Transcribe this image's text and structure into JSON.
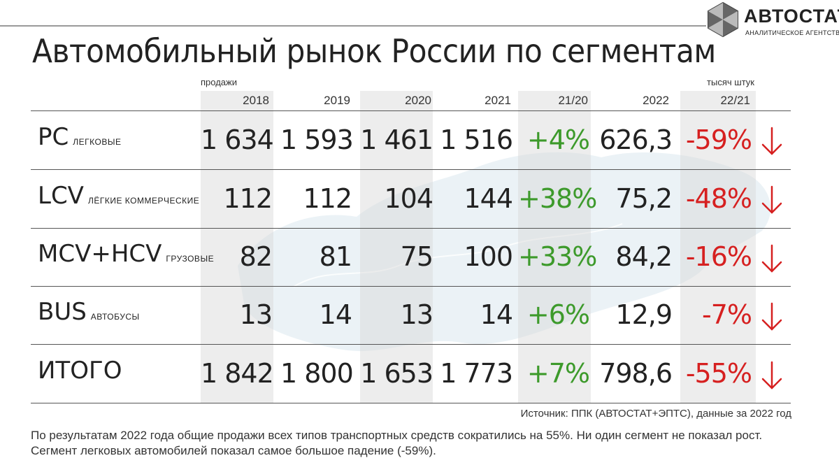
{
  "title": "Автомобильный рынок России по сегментам",
  "logo": {
    "name": "АВТОСТАТ",
    "subtitle": "АНАЛИТИЧЕСКОЕ АГЕНТСТВО"
  },
  "captions": {
    "left": "продажи",
    "right": "тысяч штук"
  },
  "columns": [
    "2018",
    "2019",
    "2020",
    "2021",
    "21/20",
    "2022",
    "22/21"
  ],
  "rows": [
    {
      "code": "PC",
      "name": "ЛЕГКОВЫЕ",
      "values": [
        "1 634",
        "1 593",
        "1 461",
        "1 516"
      ],
      "chg_21_20": "+4%",
      "v2022": "626,3",
      "chg_22_21": "-59%"
    },
    {
      "code": "LCV",
      "name": "ЛЁГКИЕ КОММЕРЧЕСКИЕ",
      "values": [
        "112",
        "112",
        "104",
        "144"
      ],
      "chg_21_20": "+38%",
      "v2022": "75,2",
      "chg_22_21": "-48%"
    },
    {
      "code": "MCV+HCV",
      "name": "ГРУЗОВЫЕ",
      "values": [
        "82",
        "81",
        "75",
        "100"
      ],
      "chg_21_20": "+33%",
      "v2022": "84,2",
      "chg_22_21": "-16%"
    },
    {
      "code": "BUS",
      "name": "АВТОБУСЫ",
      "values": [
        "13",
        "14",
        "13",
        "14"
      ],
      "chg_21_20": "+6%",
      "v2022": "12,9",
      "chg_22_21": "-7%"
    },
    {
      "code": "ИТОГО",
      "name": "",
      "values": [
        "1 842",
        "1 800",
        "1 653",
        "1 773"
      ],
      "chg_21_20": "+7%",
      "v2022": "798,6",
      "chg_22_21": "-55%"
    }
  ],
  "source": "Источник: ППК (АВТОСТАТ+ЭПТС), данные за 2022 год",
  "summary": "По результатам 2022 года общие продажи всех типов транспортных средств сократились на 55%. Ни один сегмент не показал рост. Сегмент легковых автомобилей показал самое большое падение (-59%).",
  "colors": {
    "positive": "#3d9a2b",
    "negative": "#d62020",
    "shade": "#d7d7d7"
  },
  "icons": {
    "trend": "arrow-down-icon",
    "logo": "hexagon-logo-icon"
  }
}
